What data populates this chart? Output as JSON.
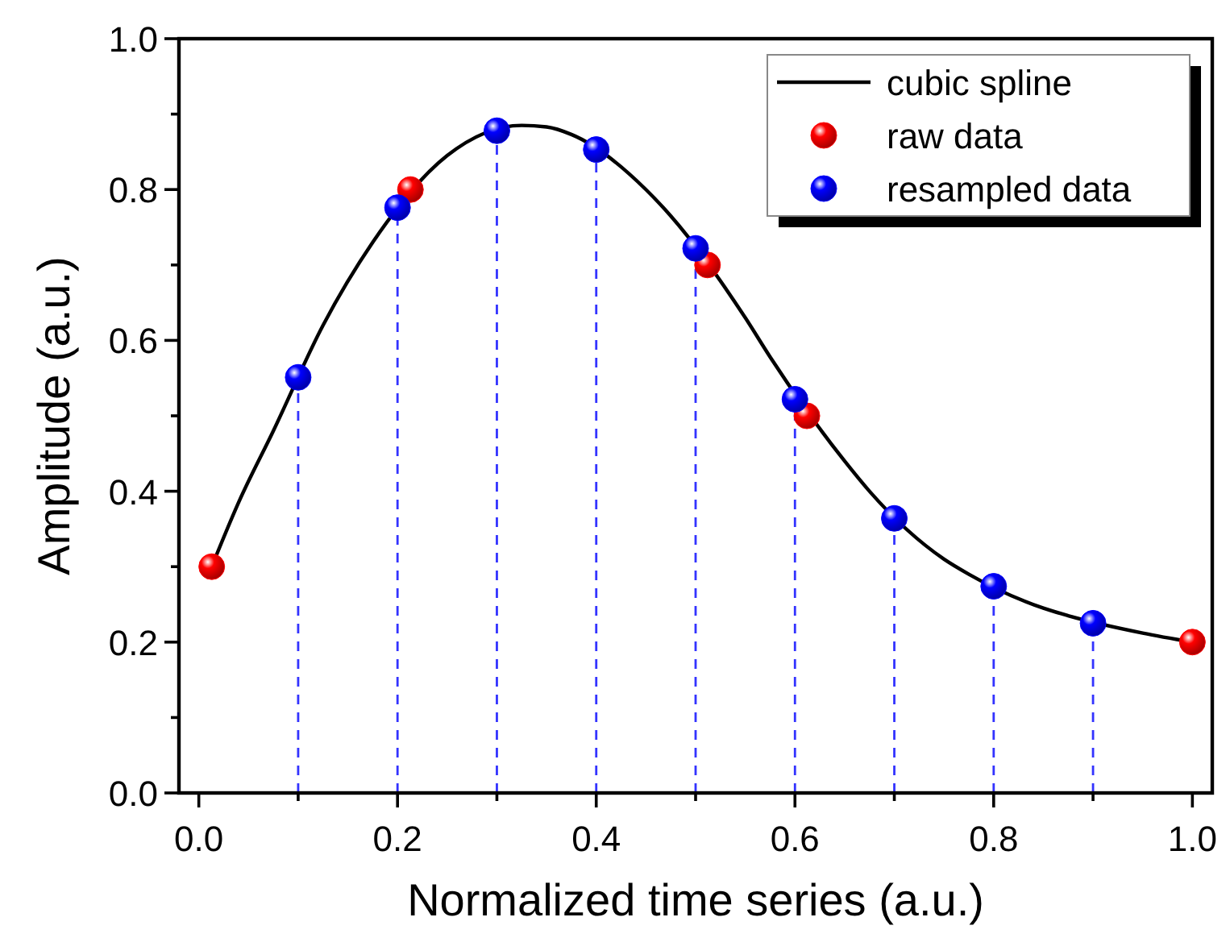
{
  "chart_data": {
    "type": "line",
    "xlabel": "Normalized time series (a.u.)",
    "ylabel": "Amplitude (a.u.)",
    "xlim": [
      -0.02,
      1.02
    ],
    "ylim": [
      0,
      1
    ],
    "xticks": [
      {
        "value": 0,
        "label": "0.0"
      },
      {
        "value": 0.1,
        "label": null
      },
      0.2,
      {
        "value": 0.3,
        "label": null
      },
      0.4,
      {
        "value": 0.5,
        "label": null
      },
      0.6,
      {
        "value": 0.7,
        "label": null
      },
      0.8,
      {
        "value": 0.9,
        "label": null
      },
      {
        "value": 1,
        "label": "1.0"
      }
    ],
    "yticks": [
      {
        "value": 0,
        "label": "0.0"
      },
      {
        "value": 0.1,
        "label": null
      },
      0.2,
      {
        "value": 0.3,
        "label": null
      },
      0.4,
      {
        "value": 0.5,
        "label": null
      },
      0.6,
      {
        "value": 0.7,
        "label": null
      },
      0.8,
      {
        "value": 0.9,
        "label": null
      },
      {
        "value": 1,
        "label": "1.0"
      }
    ],
    "legend": "top right",
    "grid": false,
    "series": [
      {
        "name": "cubic spline",
        "color": "#000000",
        "line_style": "solid",
        "marker": "none",
        "x": [
          0.013,
          0.04,
          0.075,
          0.125,
          0.175,
          0.25,
          0.325,
          0.35,
          0.375,
          0.45,
          0.475,
          0.55,
          0.575,
          0.65,
          0.675,
          0.75,
          0.775,
          0.85,
          0.875,
          0.95,
          1.0
        ],
        "values": [
          0.3,
          0.385,
          0.48,
          0.62,
          0.73,
          0.845,
          0.885,
          0.883,
          0.873,
          0.8,
          0.765,
          0.63,
          0.578,
          0.44,
          0.4,
          0.31,
          0.29,
          0.245,
          0.235,
          0.212,
          0.2
        ]
      },
      {
        "name": "raw data",
        "type": "scatter",
        "color": "#ff0000",
        "marker": "circle",
        "x": [
          0.013,
          0.213,
          0.512,
          0.612,
          1.0
        ],
        "values": [
          0.3,
          0.8,
          0.7,
          0.5,
          0.2
        ]
      },
      {
        "name": "resampled data",
        "type": "scatter",
        "color": "#0000ff",
        "marker": "circle",
        "x": [
          0.1,
          0.2,
          0.3,
          0.4,
          0.5,
          0.6,
          0.7,
          0.8,
          0.9
        ],
        "values": [
          0.551,
          0.776,
          0.878,
          0.853,
          0.722,
          0.522,
          0.364,
          0.274,
          0.225
        ]
      }
    ],
    "ref_lines": [
      {
        "axis": "x",
        "value": 0.1,
        "color": "#3333ff",
        "line_style": "dashed"
      },
      {
        "axis": "x",
        "value": 0.2,
        "color": "#3333ff",
        "line_style": "dashed"
      },
      {
        "axis": "x",
        "value": 0.3,
        "color": "#3333ff",
        "line_style": "dashed"
      },
      {
        "axis": "x",
        "value": 0.4,
        "color": "#3333ff",
        "line_style": "dashed"
      },
      {
        "axis": "x",
        "value": 0.5,
        "color": "#3333ff",
        "line_style": "dashed"
      },
      {
        "axis": "x",
        "value": 0.6,
        "color": "#3333ff",
        "line_style": "dashed"
      },
      {
        "axis": "x",
        "value": 0.7,
        "color": "#3333ff",
        "line_style": "dashed"
      },
      {
        "axis": "x",
        "value": 0.8,
        "color": "#3333ff",
        "line_style": "dashed"
      },
      {
        "axis": "x",
        "value": 0.9,
        "color": "#3333ff",
        "line_style": "dashed"
      }
    ]
  }
}
